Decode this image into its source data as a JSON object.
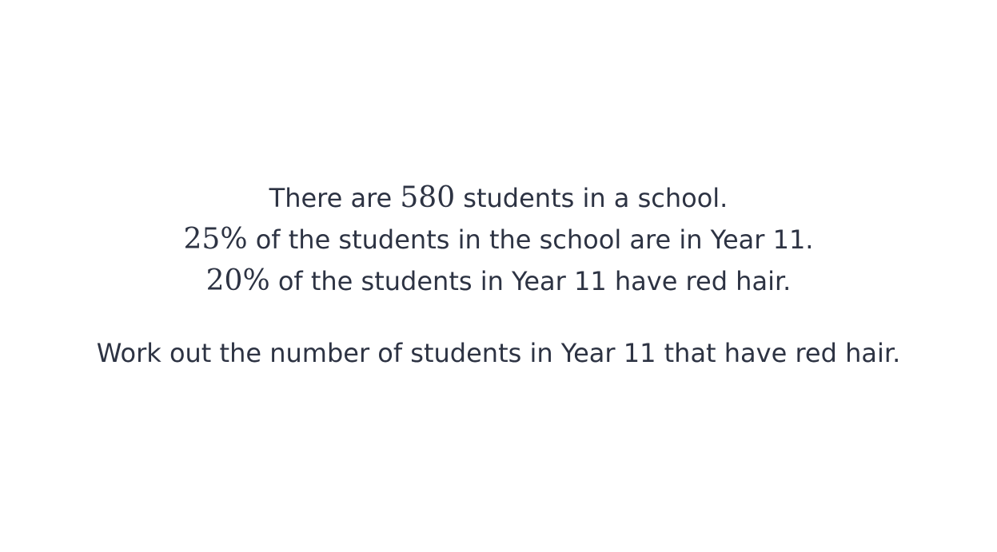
{
  "question": {
    "line1": {
      "before": "There are ",
      "math": "580",
      "after": " students in a school."
    },
    "line2": {
      "math": "25%",
      "after": " of the students in the school are in Year 11."
    },
    "line3": {
      "math": "20%",
      "after": " of the students in Year 11 have red hair."
    },
    "task": "Work out the number of students in Year 11 that have red hair."
  }
}
